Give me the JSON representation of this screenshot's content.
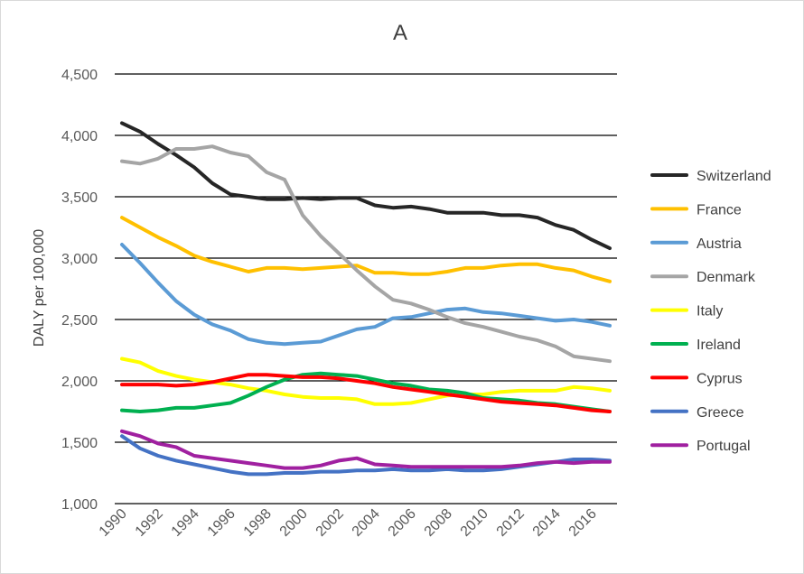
{
  "chart_data": {
    "type": "line",
    "title": "A",
    "xlabel": "",
    "ylabel": "DALY per 100,000",
    "ylim": [
      1000,
      4500
    ],
    "y_ticks": [
      "1,000",
      "1,500",
      "2,000",
      "2,500",
      "3,000",
      "3,500",
      "4,000",
      "4,500"
    ],
    "y_tick_values": [
      1000,
      1500,
      2000,
      2500,
      3000,
      3500,
      4000,
      4500
    ],
    "x": [
      1990,
      1991,
      1992,
      1993,
      1994,
      1995,
      1996,
      1997,
      1998,
      1999,
      2000,
      2001,
      2002,
      2003,
      2004,
      2005,
      2006,
      2007,
      2008,
      2009,
      2010,
      2011,
      2012,
      2013,
      2014,
      2015,
      2016,
      2017
    ],
    "x_tick_labels": [
      "1990",
      "1992",
      "1994",
      "1996",
      "1998",
      "2000",
      "2002",
      "2004",
      "2006",
      "2008",
      "2010",
      "2012",
      "2014",
      "2016"
    ],
    "grid": true,
    "legend_position": "right",
    "series": [
      {
        "name": "Switzerland",
        "color": "#262626",
        "values": [
          4100,
          4030,
          3930,
          3840,
          3740,
          3610,
          3520,
          3500,
          3480,
          3480,
          3490,
          3480,
          3490,
          3490,
          3430,
          3410,
          3420,
          3400,
          3370,
          3370,
          3370,
          3350,
          3350,
          3330,
          3270,
          3230,
          3150,
          3080
        ]
      },
      {
        "name": "France",
        "color": "#FFC000",
        "values": [
          3330,
          3250,
          3170,
          3100,
          3020,
          2970,
          2930,
          2890,
          2920,
          2920,
          2910,
          2920,
          2930,
          2940,
          2880,
          2880,
          2870,
          2870,
          2890,
          2920,
          2920,
          2940,
          2950,
          2950,
          2920,
          2900,
          2850,
          2810
        ]
      },
      {
        "name": "Austria",
        "color": "#5B9BD5",
        "values": [
          3110,
          2960,
          2800,
          2650,
          2540,
          2460,
          2410,
          2340,
          2310,
          2300,
          2310,
          2320,
          2370,
          2420,
          2440,
          2510,
          2520,
          2550,
          2580,
          2590,
          2560,
          2550,
          2530,
          2510,
          2490,
          2500,
          2480,
          2450
        ]
      },
      {
        "name": "Denmark",
        "color": "#A5A5A5",
        "values": [
          3790,
          3770,
          3810,
          3890,
          3890,
          3910,
          3860,
          3830,
          3700,
          3640,
          3350,
          3180,
          3040,
          2900,
          2770,
          2660,
          2630,
          2580,
          2520,
          2470,
          2440,
          2400,
          2360,
          2330,
          2280,
          2200,
          2180,
          2160
        ]
      },
      {
        "name": "Italy",
        "color": "#FFFF00",
        "values": [
          2180,
          2150,
          2080,
          2040,
          2010,
          1990,
          1970,
          1940,
          1920,
          1890,
          1870,
          1860,
          1860,
          1850,
          1810,
          1810,
          1820,
          1850,
          1880,
          1890,
          1890,
          1910,
          1920,
          1920,
          1920,
          1950,
          1940,
          1920
        ]
      },
      {
        "name": "Ireland",
        "color": "#00B050",
        "values": [
          1760,
          1750,
          1760,
          1780,
          1780,
          1800,
          1820,
          1880,
          1950,
          2010,
          2050,
          2060,
          2050,
          2040,
          2010,
          1980,
          1960,
          1930,
          1920,
          1900,
          1860,
          1850,
          1840,
          1820,
          1810,
          1790,
          1770,
          1750
        ]
      },
      {
        "name": "Cyprus",
        "color": "#FF0000",
        "values": [
          1970,
          1970,
          1970,
          1960,
          1970,
          1990,
          2020,
          2050,
          2050,
          2040,
          2030,
          2030,
          2020,
          2000,
          1980,
          1950,
          1930,
          1910,
          1890,
          1870,
          1850,
          1830,
          1820,
          1810,
          1800,
          1780,
          1760,
          1750
        ]
      },
      {
        "name": "Greece",
        "color": "#4472C4",
        "values": [
          1550,
          1450,
          1390,
          1350,
          1320,
          1290,
          1260,
          1240,
          1240,
          1250,
          1250,
          1260,
          1260,
          1270,
          1270,
          1280,
          1270,
          1270,
          1280,
          1270,
          1270,
          1280,
          1300,
          1320,
          1340,
          1360,
          1360,
          1350
        ]
      },
      {
        "name": "Portugal",
        "color": "#A020A0",
        "values": [
          1590,
          1550,
          1490,
          1460,
          1390,
          1370,
          1350,
          1330,
          1310,
          1290,
          1290,
          1310,
          1350,
          1370,
          1320,
          1310,
          1300,
          1300,
          1300,
          1300,
          1300,
          1300,
          1310,
          1330,
          1340,
          1330,
          1340,
          1340
        ]
      }
    ]
  }
}
